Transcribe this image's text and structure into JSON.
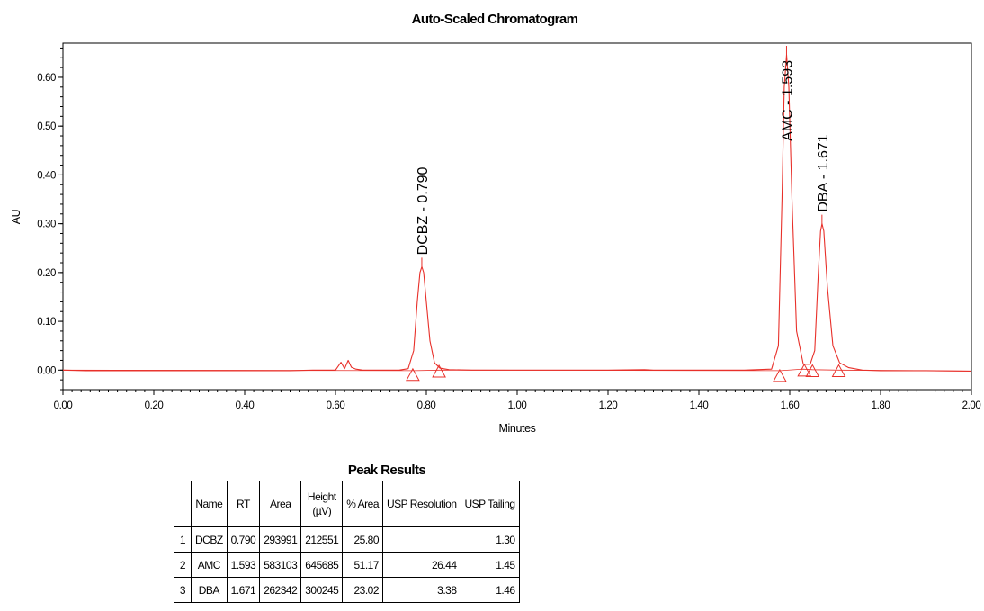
{
  "chart_data": {
    "type": "line",
    "title": "Auto-Scaled Chromatogram",
    "xlabel": "Minutes",
    "ylabel": "AU",
    "xlim": [
      0.0,
      2.0
    ],
    "ylim": [
      -0.04,
      0.67
    ],
    "x_ticks": [
      "0.00",
      "0.20",
      "0.40",
      "0.60",
      "0.80",
      "1.00",
      "1.20",
      "1.40",
      "1.60",
      "1.80",
      "2.00"
    ],
    "y_ticks": [
      "0.00",
      "0.10",
      "0.20",
      "0.30",
      "0.40",
      "0.50",
      "0.60"
    ],
    "line_color": "#e8302a",
    "peaks": [
      {
        "label": "DCBZ - 0.790",
        "rt": 0.79,
        "apex_au": 0.212
      },
      {
        "label": "AMC - 1.593",
        "rt": 1.593,
        "apex_au": 0.646
      },
      {
        "label": "DBA - 1.671",
        "rt": 1.671,
        "apex_au": 0.3
      }
    ],
    "series": [
      {
        "x": [
          0.0,
          0.05,
          0.1,
          0.2,
          0.3,
          0.4,
          0.5,
          0.55,
          0.6,
          0.612,
          0.62,
          0.628,
          0.635,
          0.645,
          0.66,
          0.7,
          0.74,
          0.76,
          0.772,
          0.78,
          0.786,
          0.79,
          0.794,
          0.8,
          0.808,
          0.818,
          0.83,
          0.85,
          0.9,
          1.0,
          1.1,
          1.2,
          1.28,
          1.3,
          1.4,
          1.5,
          1.56,
          1.575,
          1.583,
          1.588,
          1.593,
          1.598,
          1.605,
          1.615,
          1.63,
          1.645,
          1.655,
          1.663,
          1.668,
          1.671,
          1.675,
          1.683,
          1.695,
          1.71,
          1.73,
          1.76,
          1.8,
          1.9,
          2.0
        ],
        "y": [
          0.0,
          -0.001,
          -0.001,
          -0.001,
          -0.001,
          -0.001,
          -0.001,
          0.0,
          0.0,
          0.016,
          0.003,
          0.02,
          0.006,
          0.002,
          0.0,
          0.0,
          0.0,
          0.003,
          0.04,
          0.14,
          0.2,
          0.212,
          0.2,
          0.14,
          0.06,
          0.015,
          0.004,
          0.001,
          0.0,
          0.0,
          0.0,
          0.0,
          0.001,
          0.0,
          0.0,
          0.0,
          0.002,
          0.05,
          0.35,
          0.58,
          0.646,
          0.58,
          0.35,
          0.08,
          0.012,
          0.012,
          0.04,
          0.2,
          0.285,
          0.3,
          0.285,
          0.17,
          0.05,
          0.015,
          0.005,
          0.0,
          -0.001,
          -0.001,
          -0.002
        ]
      }
    ],
    "baselines": [
      {
        "x": [
          0.0,
          0.775,
          0.83,
          1.58,
          1.628,
          1.65,
          1.71,
          2.0
        ],
        "y": [
          0.0,
          -0.001,
          0.0,
          -0.001,
          0.002,
          0.001,
          0.0,
          -0.002
        ]
      }
    ],
    "drop_markers": [
      {
        "x": 0.77,
        "y": -0.012
      },
      {
        "x": 0.828,
        "y": -0.005
      },
      {
        "x": 1.578,
        "y": -0.014
      },
      {
        "x": 1.632,
        "y": -0.003
      },
      {
        "x": 1.65,
        "y": -0.004
      },
      {
        "x": 1.708,
        "y": -0.004
      }
    ]
  },
  "peak_results": {
    "title": "Peak Results",
    "headers": [
      "",
      "Name",
      "RT",
      "Area",
      "Height\n(µV)",
      "% Area",
      "USP Resolution",
      "USP Tailing"
    ],
    "rows": [
      [
        "1",
        "DCBZ",
        "0.790",
        "293991",
        "212551",
        "25.80",
        "",
        "1.30"
      ],
      [
        "2",
        "AMC",
        "1.593",
        "583103",
        "645685",
        "51.17",
        "26.44",
        "1.45"
      ],
      [
        "3",
        "DBA",
        "1.671",
        "262342",
        "300245",
        "23.02",
        "3.38",
        "1.46"
      ]
    ]
  }
}
